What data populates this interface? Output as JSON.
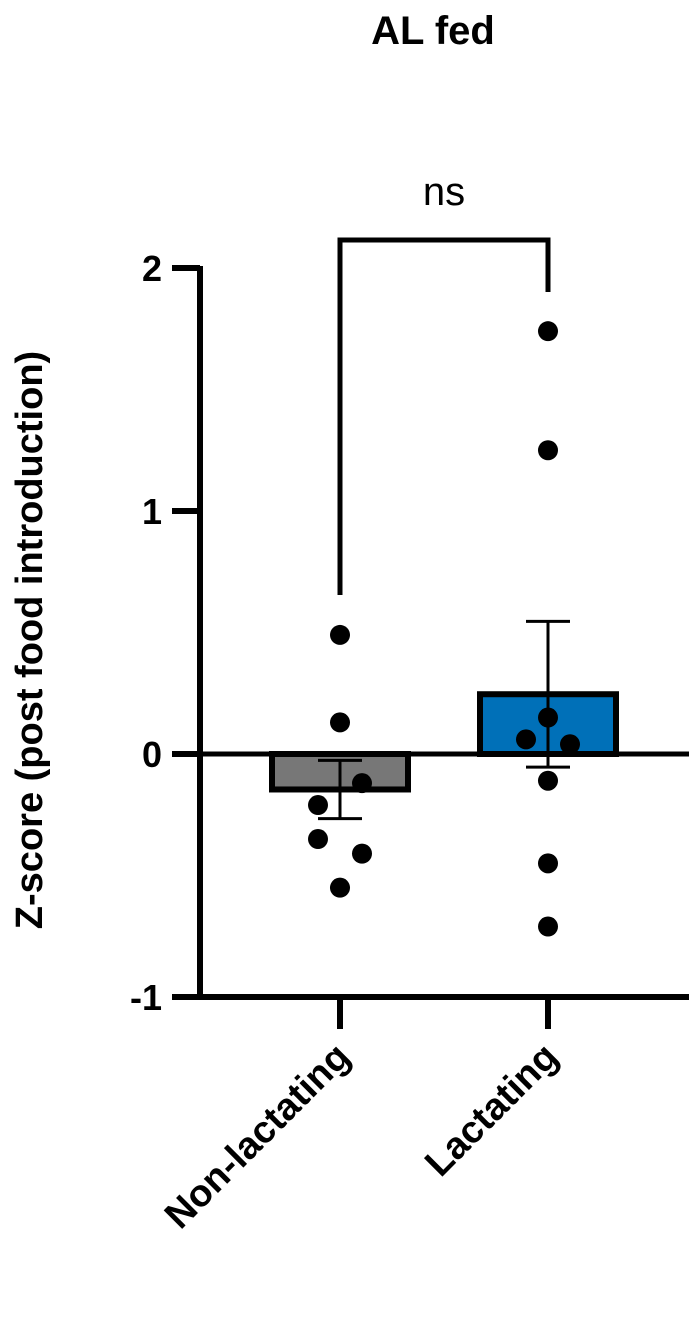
{
  "chart_data": {
    "type": "bar",
    "title": "AL fed",
    "y_label": "Z-score (post food introduction)",
    "categories": [
      "Non-lactating",
      "Lactating"
    ],
    "values": [
      -0.146,
      0.246
    ],
    "errors": [
      0.12,
      0.3
    ],
    "colors": [
      "#777777",
      "#0070b8"
    ],
    "points": [
      [
        0.49,
        0.13,
        -0.12,
        -0.21,
        -0.35,
        -0.41,
        -0.55
      ],
      [
        1.74,
        1.25,
        0.15,
        0.06,
        0.04,
        -0.11,
        -0.45,
        -0.71
      ]
    ],
    "ylim": [
      -1,
      2
    ],
    "yticks": [
      -1,
      0,
      1,
      2
    ],
    "annotation": "ns"
  }
}
